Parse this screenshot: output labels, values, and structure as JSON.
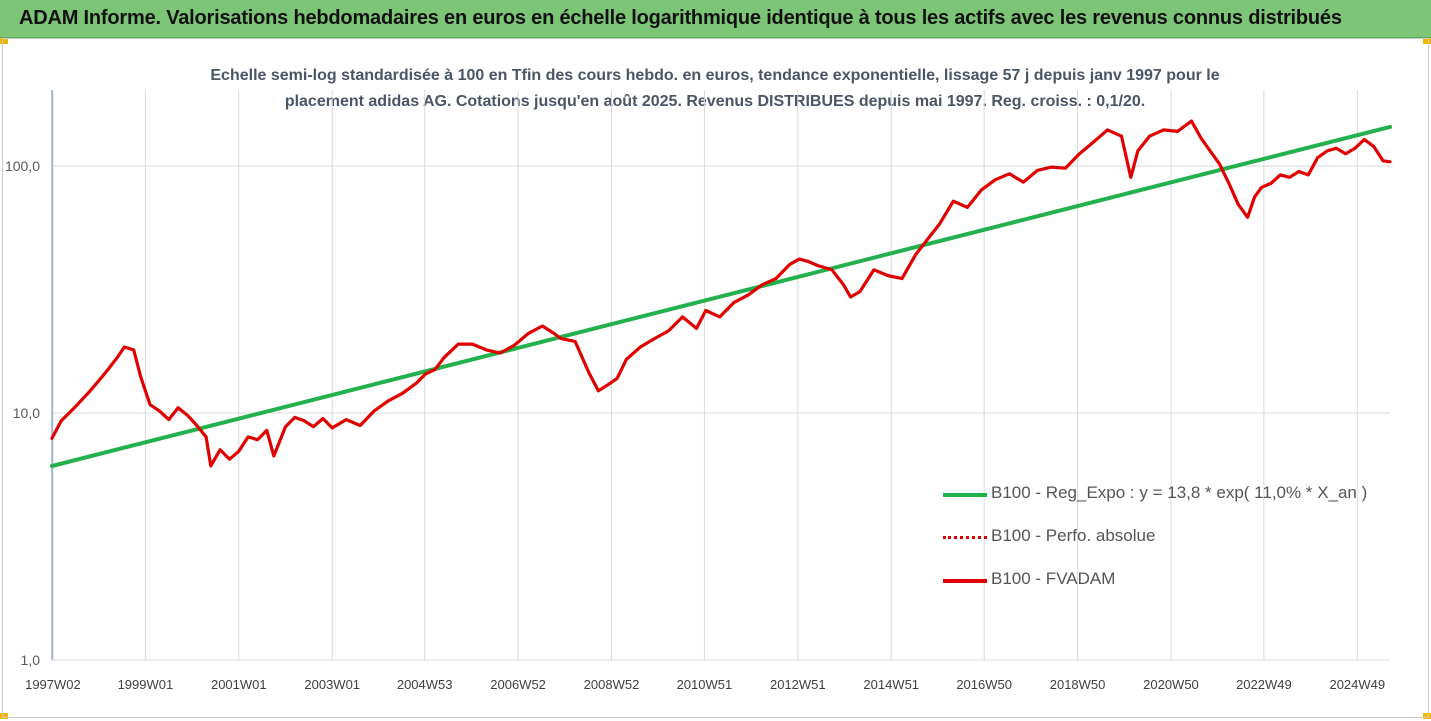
{
  "header": {
    "title": "ADAM Informe. Valorisations hebdomadaires en euros en échelle logarithmique identique à tous les actifs avec les revenus connus distribués",
    "background": "#7cc576"
  },
  "chart": {
    "subtitle_line1": "Echelle semi-log standardisée à 100 en Tfin des cours hebdo. en euros, tendance exponentielle, lissage 57 j depuis janv 1997 pour le",
    "subtitle_line2": "placement adidas AG. Cotations jusqu'en août 2025. Revenus DISTRIBUES depuis mai 1997. Reg. croiss. : 0,1/20."
  },
  "legend": {
    "items": [
      {
        "label": "B100 - Reg_Expo : y = 13,8 * exp( 11,0% *  X_an )",
        "color": "#22b14c",
        "style": "solid"
      },
      {
        "label": "B100 - Perfo. absolue",
        "color": "#e00000",
        "style": "dotted"
      },
      {
        "label": "B100 - FVADAM",
        "color": "#e00000",
        "style": "solid"
      }
    ]
  },
  "chart_data": {
    "type": "line",
    "title": "Echelle semi-log standardisée à 100 en Tfin des cours hebdo. en euros, tendance exponentielle, lissage 57 j depuis janv 1997 pour le placement adidas AG. Cotations jusqu'en août 2025. Revenus DISTRIBUES depuis mai 1997. Reg. croiss. : 0,1/20.",
    "y_scale": "log",
    "ylim": [
      1,
      200
    ],
    "x_range": [
      1997.0,
      2025.65
    ],
    "y_ticks": [
      "1,0",
      "10,0",
      "100,0"
    ],
    "y_tick_values": [
      1,
      10,
      100
    ],
    "x_tick_labels": [
      "1997W02",
      "1999W01",
      "2001W01",
      "2003W01",
      "2004W53",
      "2006W52",
      "2008W52",
      "2010W51",
      "2012W51",
      "2014W51",
      "2016W50",
      "2018W50",
      "2020W50",
      "2022W49",
      "2024W49"
    ],
    "x_tick_years": [
      1997.02,
      1999.0,
      2001.0,
      2003.0,
      2004.98,
      2006.98,
      2008.98,
      2010.97,
      2012.97,
      2014.97,
      2016.96,
      2018.96,
      2020.96,
      2022.95,
      2024.95
    ],
    "grid": "vertical and horizontal major gridlines",
    "legend_position": "bottom-right",
    "series": [
      {
        "name": "B100 - Reg_Expo : y = 13,8 * exp( 11,0% *  X_an )",
        "color": "#22b14c",
        "x": [
          1997.0,
          2025.65
        ],
        "values": [
          6.1,
          144
        ]
      },
      {
        "name": "B100 - FVADAM",
        "color": "#e00000",
        "x": [
          1997.0,
          1997.2,
          1997.5,
          1997.8,
          1998.0,
          1998.2,
          1998.4,
          1998.55,
          1998.75,
          1998.9,
          1999.1,
          1999.3,
          1999.5,
          1999.7,
          1999.9,
          2000.1,
          2000.3,
          2000.4,
          2000.6,
          2000.8,
          2001.0,
          2001.2,
          2001.4,
          2001.6,
          2001.75,
          2002.0,
          2002.2,
          2002.4,
          2002.6,
          2002.8,
          2003.0,
          2003.3,
          2003.6,
          2003.9,
          2004.2,
          2004.5,
          2004.8,
          2005.0,
          2005.2,
          2005.4,
          2005.7,
          2006.0,
          2006.3,
          2006.6,
          2006.9,
          2007.2,
          2007.5,
          2007.75,
          2007.9,
          2008.2,
          2008.5,
          2008.7,
          2008.9,
          2009.1,
          2009.3,
          2009.6,
          2009.9,
          2010.2,
          2010.5,
          2010.8,
          2011.0,
          2011.3,
          2011.6,
          2011.9,
          2012.2,
          2012.5,
          2012.8,
          2013.0,
          2013.2,
          2013.4,
          2013.7,
          2013.95,
          2014.1,
          2014.3,
          2014.6,
          2014.9,
          2015.2,
          2015.5,
          2015.8,
          2016.0,
          2016.3,
          2016.6,
          2016.9,
          2017.2,
          2017.5,
          2017.8,
          2018.1,
          2018.4,
          2018.7,
          2019.0,
          2019.3,
          2019.6,
          2019.9,
          2020.1,
          2020.25,
          2020.5,
          2020.8,
          2021.1,
          2021.4,
          2021.6,
          2021.8,
          2022.0,
          2022.2,
          2022.4,
          2022.6,
          2022.75,
          2022.9,
          2023.1,
          2023.3,
          2023.5,
          2023.7,
          2023.9,
          2024.1,
          2024.3,
          2024.5,
          2024.7,
          2024.9,
          2025.1,
          2025.3,
          2025.5,
          2025.65
        ],
        "values": [
          7.9,
          9.3,
          10.6,
          12.2,
          13.5,
          15.0,
          16.8,
          18.5,
          18.0,
          14.0,
          10.8,
          10.2,
          9.4,
          10.5,
          9.8,
          8.9,
          8.0,
          6.1,
          7.1,
          6.5,
          7.0,
          8.0,
          7.8,
          8.5,
          6.7,
          8.8,
          9.6,
          9.3,
          8.8,
          9.5,
          8.7,
          9.4,
          8.9,
          10.2,
          11.2,
          12.0,
          13.2,
          14.4,
          15.0,
          16.8,
          19.0,
          19.0,
          18.0,
          17.5,
          18.8,
          21.0,
          22.5,
          21.0,
          20.0,
          19.5,
          14.5,
          12.3,
          13.0,
          13.8,
          16.5,
          18.5,
          20.0,
          21.5,
          24.5,
          22.0,
          26.0,
          24.5,
          28.0,
          30.0,
          33.0,
          35.0,
          40.0,
          42.0,
          41.0,
          39.5,
          38.0,
          33.0,
          29.5,
          31.0,
          38.0,
          36.0,
          35.0,
          44.0,
          52.0,
          58.0,
          72.0,
          68.0,
          80.0,
          88.0,
          93.0,
          86.0,
          96.0,
          99.0,
          98.0,
          112.0,
          125.0,
          140.0,
          132.0,
          90.0,
          115.0,
          132.0,
          140.0,
          138.0,
          152.0,
          130.0,
          115.0,
          102.0,
          85.0,
          70.0,
          62.0,
          75.0,
          82.0,
          85.0,
          92.0,
          90.0,
          95.0,
          92.0,
          108.0,
          115.0,
          118.0,
          112.0,
          118.0,
          128.0,
          120.0,
          105.0,
          104.0
        ]
      }
    ]
  }
}
